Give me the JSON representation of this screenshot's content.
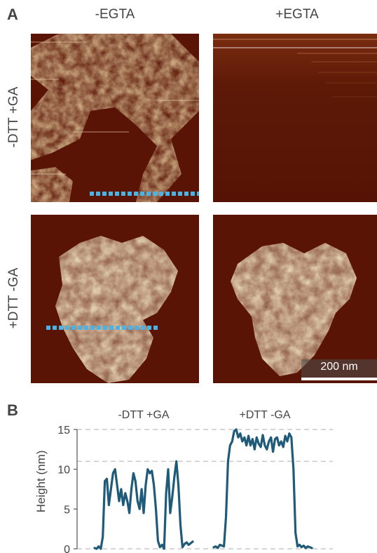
{
  "figure": {
    "panel_a_letter": "A",
    "panel_b_letter": "B",
    "columns": [
      "-EGTA",
      "+EGTA"
    ],
    "rows": [
      "-DTT +GA",
      "+DTT -GA"
    ],
    "scale_bar": "200 nm",
    "colors": {
      "afm_background": "#5a1405",
      "afm_high": "#f5e6b5",
      "profile_line": "#4ab3e6",
      "series_line": "#1f5a78",
      "guide_line": "#c8c8c8"
    }
  },
  "chart_data": {
    "type": "line",
    "ylabel": "Height (nm)",
    "ylim": [
      0,
      15
    ],
    "yticks": [
      0,
      5,
      10,
      15
    ],
    "guides": [
      0,
      11,
      15
    ],
    "series": [
      {
        "name": "-DTT +GA",
        "x": [
          0,
          1,
          2,
          3,
          4,
          5,
          6,
          7,
          8,
          9,
          10,
          11,
          12,
          13,
          14,
          15,
          16,
          17,
          18,
          19,
          20,
          21,
          22,
          23,
          24,
          25,
          26,
          27,
          28,
          29,
          30,
          31,
          32,
          33,
          34,
          35,
          36,
          37,
          38,
          39,
          40,
          41,
          42,
          43,
          44,
          45,
          46,
          47,
          48
        ],
        "values": [
          0.1,
          0,
          0.3,
          0,
          1.5,
          8.5,
          8.8,
          5.5,
          7.5,
          9.5,
          10,
          8,
          6,
          7.5,
          5.5,
          7,
          6,
          4.5,
          7.5,
          9.5,
          8.5,
          6,
          5,
          7.5,
          4.5,
          8,
          10,
          9.5,
          9.8,
          8,
          5,
          1,
          0.2,
          0.5,
          0,
          7,
          10,
          4.5,
          6.5,
          9,
          11,
          8,
          3,
          0.2,
          0.6,
          0.8,
          0.5,
          0.7,
          0.9
        ]
      },
      {
        "name": "+DTT -GA",
        "x": [
          0,
          1,
          2,
          3,
          4,
          5,
          6,
          7,
          8,
          9,
          10,
          11,
          12,
          13,
          14,
          15,
          16,
          17,
          18,
          19,
          20,
          21,
          22,
          23,
          24,
          25,
          26,
          27,
          28,
          29,
          30,
          31,
          32,
          33,
          34,
          35,
          36,
          37,
          38,
          39,
          40,
          41,
          42,
          43,
          44,
          45,
          46,
          47,
          48
        ],
        "values": [
          0.2,
          0.3,
          0.1,
          0.5,
          0.4,
          0.3,
          4,
          11,
          13,
          13.5,
          14.8,
          15,
          14,
          14.5,
          13.5,
          14,
          13,
          14.2,
          13,
          13.8,
          12.5,
          14,
          13.2,
          12.8,
          14.3,
          13,
          12.5,
          13.5,
          14,
          12.2,
          13.8,
          14,
          13,
          13.5,
          12.8,
          14.2,
          13.5,
          14.5,
          14,
          10,
          2,
          0.3,
          0.5,
          0.2,
          0.4,
          0.1,
          0.3,
          0.2,
          0.1
        ]
      }
    ]
  }
}
